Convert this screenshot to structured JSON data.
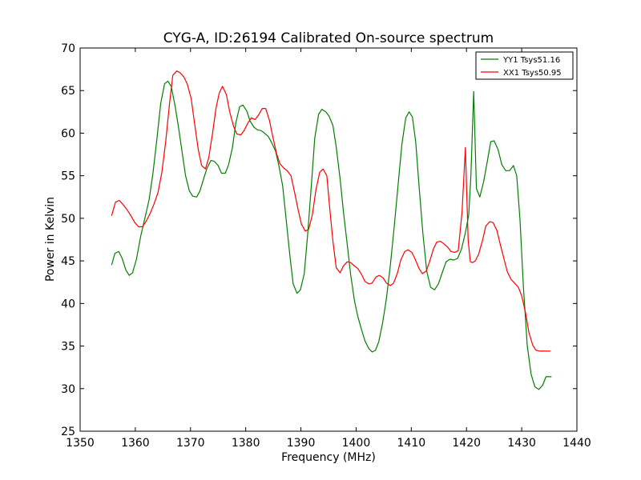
{
  "chart_data": {
    "type": "line",
    "title": "CYG-A, ID:26194 Calibrated On-source spectrum",
    "xlabel": "Frequency (MHz)",
    "ylabel": "Power in Kelvin",
    "xlim": [
      1350,
      1440
    ],
    "ylim": [
      25,
      70
    ],
    "xticks": [
      1350,
      1360,
      1370,
      1380,
      1390,
      1400,
      1410,
      1420,
      1430,
      1440
    ],
    "yticks": [
      25,
      30,
      35,
      40,
      45,
      50,
      55,
      60,
      65,
      70
    ],
    "grid": false,
    "legend_position": "top-right",
    "series": [
      {
        "name": "YY1 Tsys51.16",
        "color": "#008000",
        "x": [
          1355.7,
          1356.3,
          1357.0,
          1357.6,
          1358.3,
          1358.9,
          1359.5,
          1360.2,
          1361.0,
          1361.8,
          1362.5,
          1363.2,
          1363.9,
          1364.6,
          1365.3,
          1365.9,
          1366.5,
          1367.2,
          1367.8,
          1368.5,
          1369.1,
          1369.8,
          1370.4,
          1371.1,
          1371.7,
          1372.4,
          1373.0,
          1373.7,
          1374.3,
          1375.0,
          1375.6,
          1376.3,
          1376.9,
          1377.6,
          1378.2,
          1378.9,
          1379.5,
          1380.2,
          1380.8,
          1381.5,
          1382.1,
          1382.8,
          1383.4,
          1384.1,
          1384.7,
          1385.4,
          1386.0,
          1386.7,
          1387.3,
          1388.0,
          1388.6,
          1389.3,
          1389.9,
          1390.6,
          1391.2,
          1391.9,
          1392.5,
          1393.2,
          1393.8,
          1394.5,
          1395.1,
          1395.8,
          1396.4,
          1397.1,
          1397.7,
          1398.4,
          1399.0,
          1399.7,
          1400.3,
          1401.0,
          1401.6,
          1402.3,
          1402.9,
          1403.5,
          1404.1,
          1404.8,
          1405.5,
          1406.2,
          1406.9,
          1407.6,
          1408.3,
          1409.0,
          1409.6,
          1410.2,
          1410.8,
          1411.4,
          1412.1,
          1412.8,
          1413.5,
          1414.2,
          1414.9,
          1415.6,
          1416.3,
          1417.0,
          1417.7,
          1418.4,
          1419.1,
          1419.8,
          1420.4,
          1420.8,
          1421.3,
          1421.8,
          1422.4,
          1423.1,
          1423.8,
          1424.4,
          1425.0,
          1425.7,
          1426.4,
          1427.1,
          1427.8,
          1428.5,
          1429.1,
          1429.7,
          1430.3,
          1431.0,
          1431.7,
          1432.4,
          1433.1,
          1433.8,
          1434.4,
          1435.0,
          1435.4
        ],
        "values": [
          44.5,
          45.9,
          46.1,
          45.3,
          43.9,
          43.3,
          43.6,
          45.2,
          48.0,
          50.2,
          52.2,
          55.3,
          59.3,
          63.5,
          65.8,
          66.1,
          65.5,
          63.2,
          60.8,
          57.7,
          55.0,
          53.2,
          52.6,
          52.5,
          53.2,
          54.7,
          55.9,
          56.8,
          56.7,
          56.2,
          55.3,
          55.3,
          56.3,
          58.3,
          61.2,
          63.1,
          63.3,
          62.6,
          61.4,
          60.7,
          60.4,
          60.3,
          60.0,
          59.6,
          58.9,
          57.9,
          56.2,
          53.8,
          50.0,
          45.6,
          42.3,
          41.2,
          41.6,
          43.5,
          47.9,
          53.9,
          59.4,
          62.2,
          62.8,
          62.5,
          62.0,
          60.9,
          58.4,
          54.6,
          50.8,
          46.9,
          43.4,
          40.3,
          38.5,
          36.9,
          35.6,
          34.7,
          34.3,
          34.5,
          35.5,
          37.7,
          40.6,
          44.5,
          49.0,
          53.9,
          58.7,
          61.8,
          62.5,
          61.9,
          59.0,
          53.8,
          48.2,
          43.8,
          41.9,
          41.6,
          42.3,
          43.6,
          44.9,
          45.2,
          45.1,
          45.3,
          46.4,
          48.3,
          50.4,
          55.0,
          64.9,
          53.5,
          52.5,
          54.3,
          56.8,
          59.0,
          59.1,
          58.1,
          56.3,
          55.6,
          55.6,
          56.2,
          55.0,
          49.8,
          42.0,
          35.1,
          31.7,
          30.2,
          29.9,
          30.4,
          31.4,
          31.4,
          31.4
        ]
      },
      {
        "name": "XX1 Tsys50.95",
        "color": "#ff0000",
        "x": [
          1355.7,
          1356.4,
          1357.1,
          1357.8,
          1358.5,
          1359.2,
          1359.9,
          1360.6,
          1361.3,
          1362.0,
          1362.7,
          1363.4,
          1364.1,
          1364.8,
          1365.5,
          1366.2,
          1366.8,
          1367.5,
          1368.1,
          1368.8,
          1369.4,
          1370.1,
          1370.7,
          1371.4,
          1372.0,
          1372.7,
          1373.3,
          1374.0,
          1374.6,
          1375.2,
          1375.8,
          1376.5,
          1377.1,
          1377.8,
          1378.4,
          1379.1,
          1379.7,
          1380.4,
          1381.0,
          1381.7,
          1382.3,
          1383.0,
          1383.6,
          1384.3,
          1384.9,
          1385.6,
          1386.2,
          1386.9,
          1387.5,
          1388.2,
          1388.8,
          1389.5,
          1390.1,
          1390.8,
          1391.4,
          1392.1,
          1392.7,
          1393.4,
          1394.0,
          1394.7,
          1395.2,
          1395.8,
          1396.4,
          1397.1,
          1397.7,
          1398.4,
          1399.0,
          1399.7,
          1400.3,
          1401.0,
          1401.6,
          1402.3,
          1402.9,
          1403.6,
          1404.2,
          1404.9,
          1405.5,
          1406.2,
          1406.8,
          1407.5,
          1408.1,
          1408.8,
          1409.4,
          1410.1,
          1410.7,
          1411.4,
          1412.0,
          1412.7,
          1413.3,
          1414.0,
          1414.6,
          1415.3,
          1415.9,
          1416.6,
          1417.2,
          1417.9,
          1418.5,
          1419.2,
          1419.8,
          1420.3,
          1420.7,
          1421.1,
          1421.6,
          1422.2,
          1422.9,
          1423.5,
          1424.2,
          1424.8,
          1425.5,
          1426.1,
          1426.8,
          1427.4,
          1428.1,
          1428.7,
          1429.4,
          1430.0,
          1430.7,
          1431.3,
          1432.0,
          1432.6,
          1433.3,
          1433.9,
          1434.6,
          1435.2
        ],
        "values": [
          50.3,
          51.9,
          52.1,
          51.6,
          51.0,
          50.3,
          49.5,
          49.0,
          49.0,
          49.7,
          50.6,
          51.7,
          53.0,
          55.4,
          59.0,
          63.5,
          66.8,
          67.3,
          67.1,
          66.6,
          65.8,
          64.1,
          61.3,
          58.1,
          56.2,
          55.8,
          57.1,
          60.0,
          62.9,
          64.7,
          65.5,
          64.5,
          62.5,
          60.8,
          59.9,
          59.8,
          60.3,
          61.2,
          61.8,
          61.6,
          62.1,
          62.9,
          62.9,
          61.5,
          59.6,
          57.6,
          56.4,
          55.9,
          55.6,
          55.0,
          53.2,
          51.0,
          49.3,
          48.5,
          48.7,
          50.5,
          53.3,
          55.4,
          55.8,
          55.0,
          51.3,
          47.3,
          44.2,
          43.6,
          44.4,
          44.9,
          44.8,
          44.4,
          44.1,
          43.4,
          42.6,
          42.3,
          42.4,
          43.1,
          43.3,
          43.0,
          42.4,
          42.1,
          42.4,
          43.6,
          45.1,
          46.1,
          46.3,
          46.0,
          45.2,
          44.1,
          43.5,
          43.8,
          44.9,
          46.4,
          47.2,
          47.3,
          47.0,
          46.6,
          46.1,
          46.0,
          46.2,
          50.8,
          58.3,
          47.4,
          44.9,
          44.8,
          45.0,
          45.8,
          47.4,
          49.1,
          49.6,
          49.5,
          48.6,
          47.0,
          45.2,
          43.7,
          42.8,
          42.4,
          41.9,
          40.9,
          38.9,
          36.6,
          35.1,
          34.5,
          34.4,
          34.4,
          34.4,
          34.4
        ]
      }
    ]
  }
}
